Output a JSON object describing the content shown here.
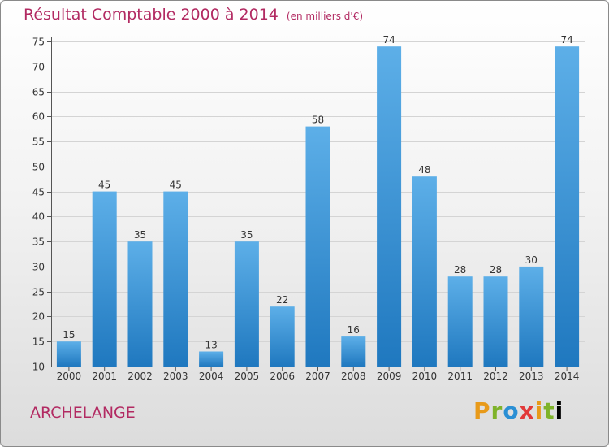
{
  "header": {
    "title": "Résultat Comptable 2000 à 2014",
    "unit": "(en milliers d'€)"
  },
  "footer": {
    "commune": "ARCHELANGE",
    "brand_letters": [
      "P",
      "r",
      "o",
      "x",
      "i",
      "t",
      "i"
    ]
  },
  "colors": {
    "bar_light": "#5dafe8",
    "bar_dark": "#1f78bf",
    "accent_text": "#b22a62"
  },
  "chart_data": {
    "type": "bar",
    "title": "Résultat Comptable 2000 à 2014",
    "xlabel": "",
    "ylabel": "",
    "categories": [
      "2000",
      "2001",
      "2002",
      "2003",
      "2004",
      "2005",
      "2006",
      "2007",
      "2008",
      "2009",
      "2010",
      "2011",
      "2012",
      "2013",
      "2014"
    ],
    "values": [
      15,
      45,
      35,
      45,
      13,
      35,
      22,
      58,
      16,
      74,
      48,
      28,
      28,
      30,
      74
    ],
    "ylim": [
      10,
      75
    ],
    "yticks": [
      10,
      15,
      20,
      25,
      30,
      35,
      40,
      45,
      50,
      55,
      60,
      65,
      70,
      75
    ],
    "grid": true
  }
}
